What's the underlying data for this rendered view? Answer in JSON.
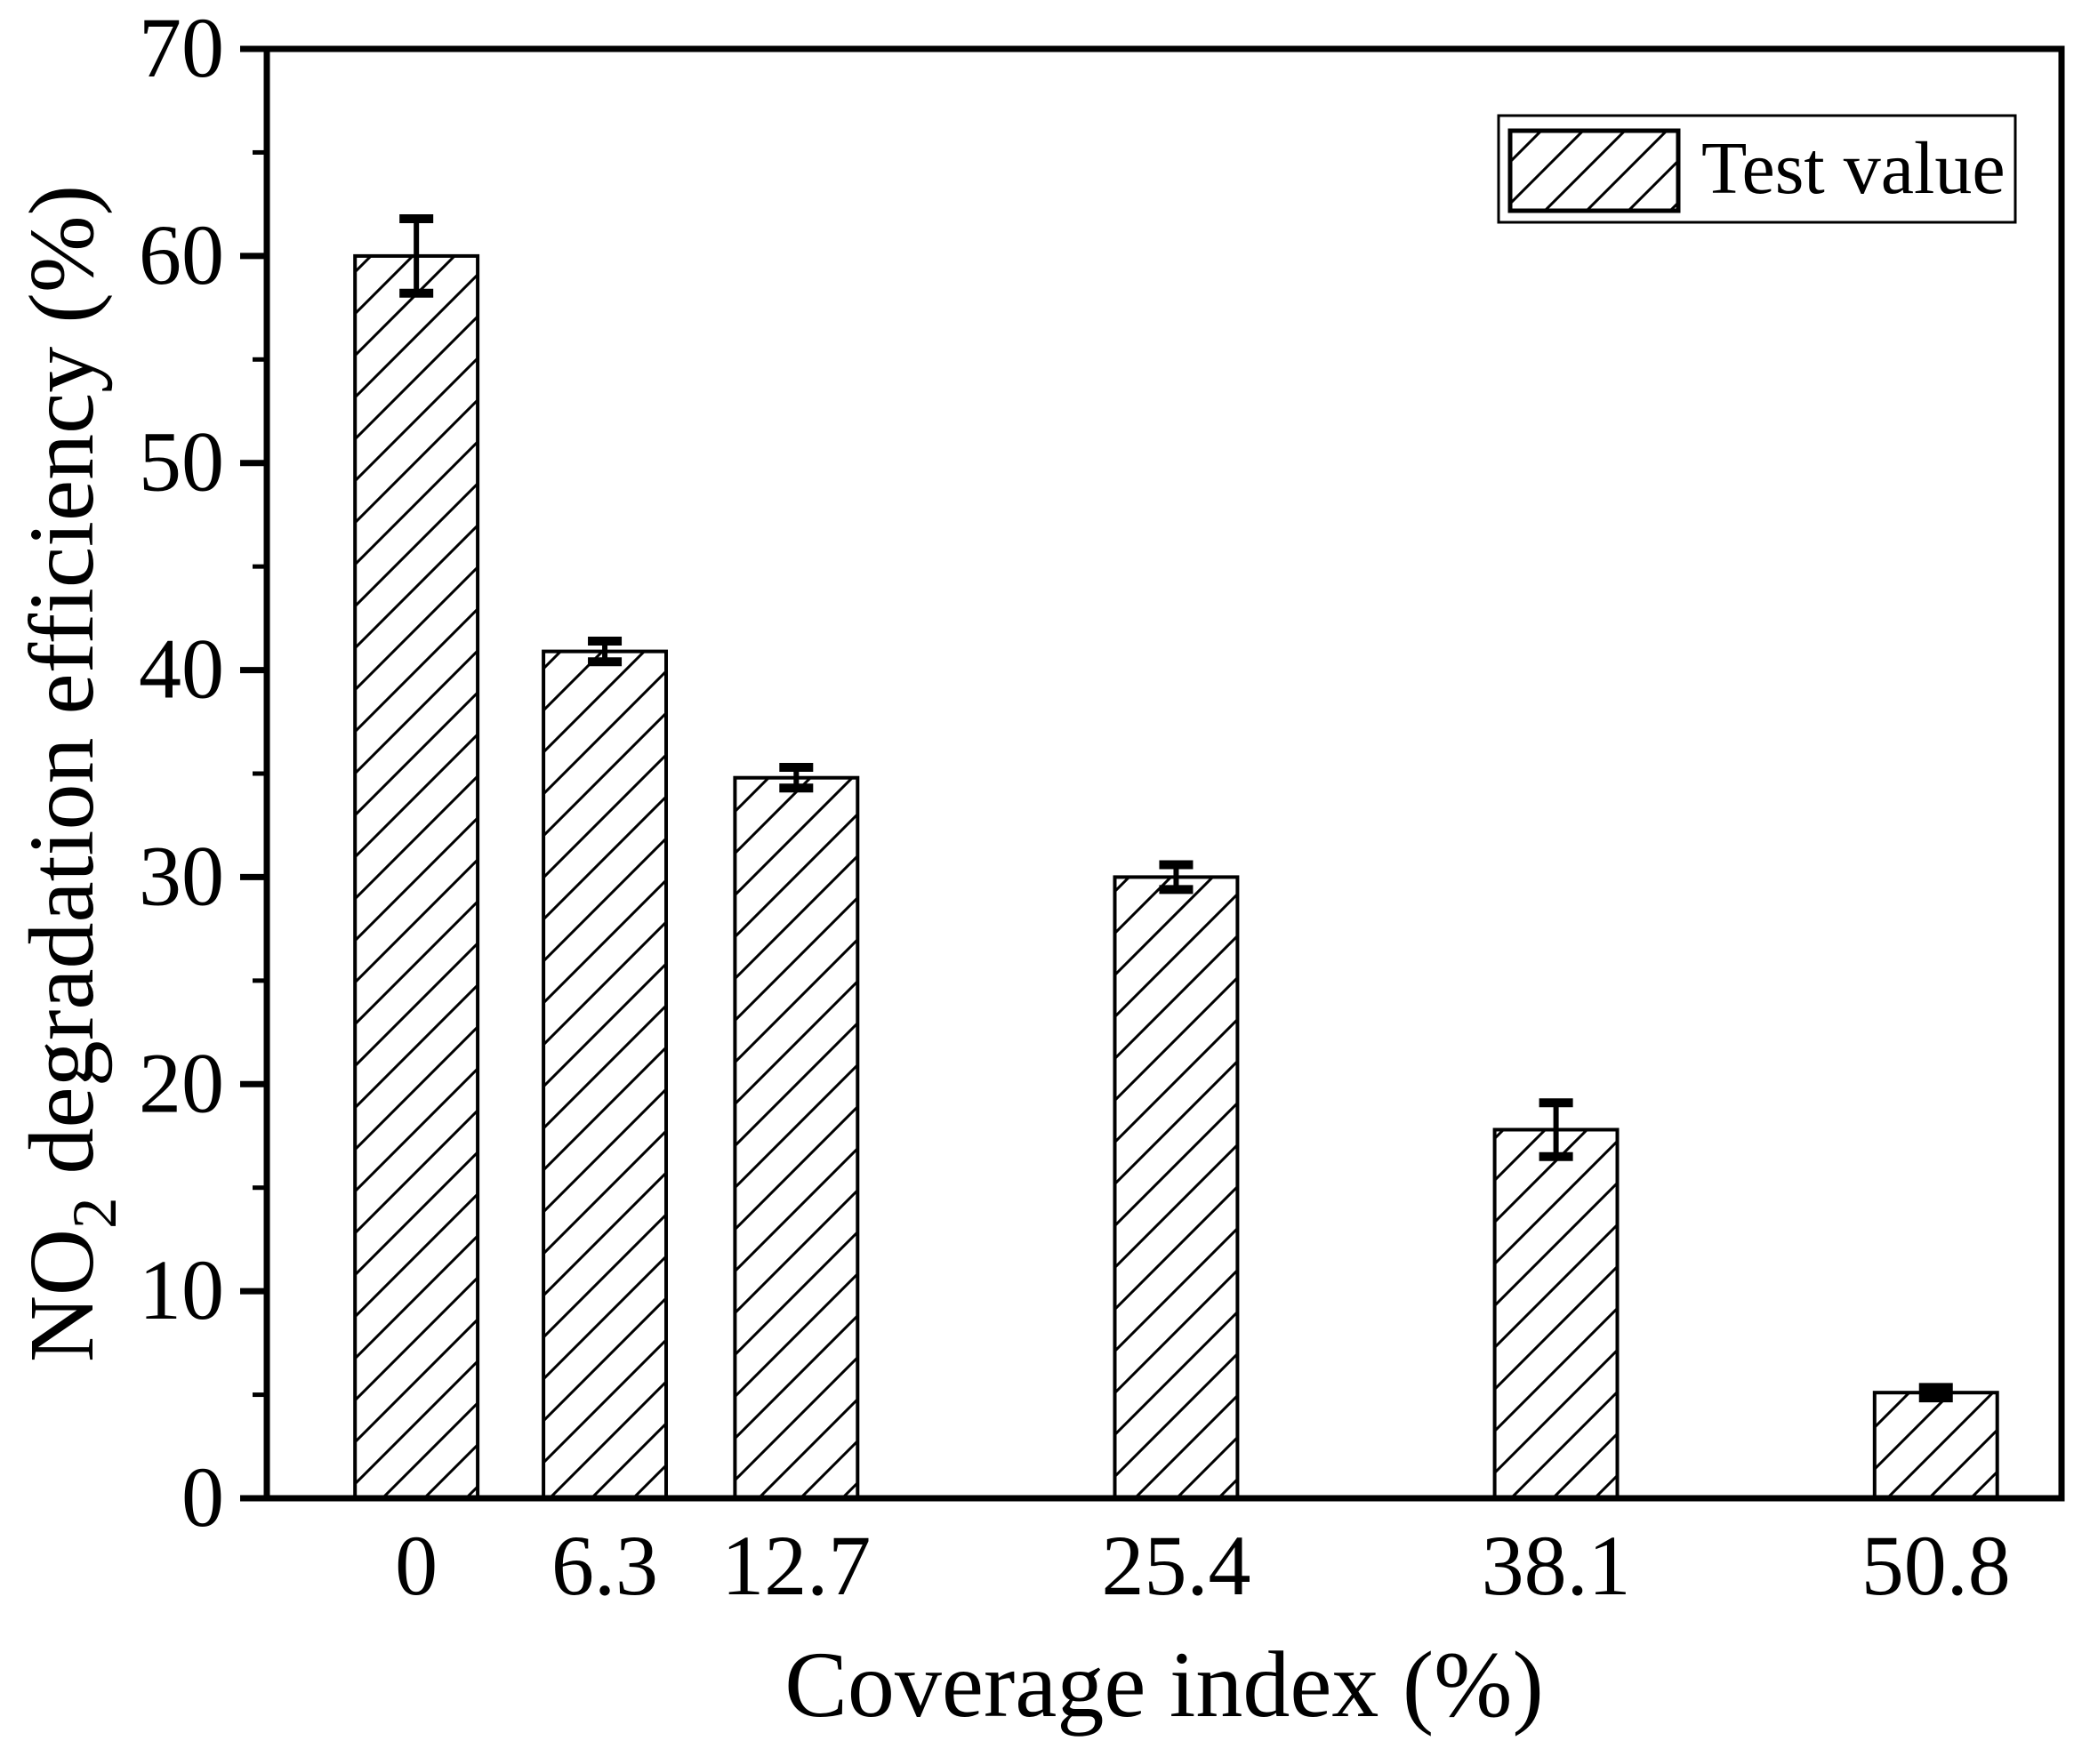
{
  "figure": {
    "background": "#ffffff",
    "foreground": "#000000"
  },
  "chart_data": {
    "type": "bar",
    "title": "",
    "xlabel": "Coverage index (%)",
    "ylabel": "NO2 degradation efficiency (%)",
    "ylabel_rich": [
      {
        "text": "NO",
        "sub": false
      },
      {
        "text": "2",
        "sub": true
      },
      {
        "text": " degradation efficiency (%)",
        "sub": false
      }
    ],
    "legend": [
      "Test value"
    ],
    "legend_position": "top-right",
    "categories": [
      "0",
      "6.3",
      "12.7",
      "25.4",
      "38.1",
      "50.8"
    ],
    "x": [
      0,
      6.3,
      12.7,
      25.4,
      38.1,
      50.8
    ],
    "values": [
      60.0,
      40.9,
      34.8,
      30.0,
      17.8,
      5.1
    ],
    "errors": [
      1.8,
      0.5,
      0.5,
      0.6,
      1.3,
      0.25
    ],
    "bar_width_units": 4.1,
    "xlim": [
      -5,
      55
    ],
    "ylim": [
      0,
      70
    ],
    "yticks": [
      0,
      10,
      20,
      30,
      40,
      50,
      60,
      70
    ],
    "yticks_minor": [
      5,
      15,
      25,
      35,
      45,
      55,
      65
    ],
    "grid": false,
    "hatch": "forward-diagonal",
    "colors": {
      "bar_fill": "#ffffff",
      "bar_stroke": "#000000",
      "error_stroke": "#000000",
      "axis_stroke": "#000000",
      "background": "#ffffff"
    }
  }
}
